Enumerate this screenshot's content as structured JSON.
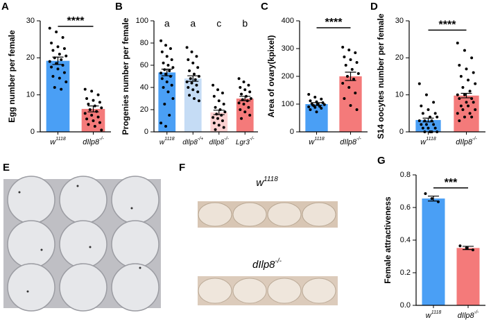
{
  "chart_data": [
    {
      "type": "bar",
      "panel": "A",
      "ylabel": "Egg number per female",
      "categories": [
        "w",
        "dIlp8"
      ],
      "category_sups": [
        "1118",
        "-/-"
      ],
      "values": [
        19.2,
        6.2
      ],
      "errors": [
        1.0,
        0.8
      ],
      "colors": [
        "#4a9ff5",
        "#f47a7a"
      ],
      "points": [
        [
          28,
          27,
          25.5,
          24,
          23,
          22.5,
          22,
          21,
          20.5,
          20,
          19.5,
          19,
          18.5,
          18,
          17.5,
          17,
          16,
          15,
          14.5,
          13.5,
          12,
          11.5
        ],
        [
          11.5,
          11,
          10,
          9,
          8.5,
          8,
          7.5,
          7,
          6.5,
          6,
          5.5,
          5,
          4.5,
          4,
          3.5,
          3,
          2.5,
          2,
          1.5,
          0.5
        ]
      ],
      "ylim": [
        0,
        30
      ],
      "yticks": [
        0,
        10,
        20,
        30
      ],
      "significance": {
        "label": "****",
        "value": 28.5
      }
    },
    {
      "type": "bar",
      "panel": "B",
      "ylabel": "Progenies number per female",
      "categories": [
        "w",
        "dIlp8",
        "dIlp8",
        "Lgr3"
      ],
      "category_sups": [
        "1118",
        "-/+",
        "-/-",
        "-/-"
      ],
      "values": [
        53.5,
        48,
        17.5,
        30
      ],
      "errors": [
        3,
        2.5,
        2,
        2
      ],
      "colors": [
        "#4a9ff5",
        "#c5dcf5",
        "#fbd0d0",
        "#f47a7a"
      ],
      "points": [
        [
          82,
          78,
          75,
          72,
          68,
          65,
          62,
          60,
          58,
          56,
          55,
          53,
          52,
          50,
          48,
          45,
          42,
          40,
          36,
          30,
          25,
          15,
          8,
          5
        ],
        [
          76,
          72,
          68,
          65,
          62,
          58,
          55,
          52,
          50,
          48,
          47,
          45,
          44,
          42,
          40,
          38,
          36,
          33,
          30,
          28
        ],
        [
          42,
          38,
          35,
          32,
          28,
          25,
          22,
          20,
          18,
          16,
          15,
          13,
          12,
          10,
          8,
          6,
          4,
          2
        ],
        [
          48,
          45,
          42,
          40,
          38,
          36,
          34,
          32,
          30,
          29,
          28,
          26,
          25,
          22,
          20,
          18,
          15,
          12
        ]
      ],
      "ylim": [
        0,
        100
      ],
      "yticks": [
        0,
        20,
        40,
        60,
        80,
        100
      ],
      "letters": [
        "a",
        "a",
        "c",
        "b"
      ]
    },
    {
      "type": "bar",
      "panel": "C",
      "ylabel": "Area of ovary(kpixel)",
      "categories": [
        "w",
        "dIlp8"
      ],
      "category_sups": [
        "1118",
        "-/-"
      ],
      "values": [
        100,
        200
      ],
      "errors": [
        5,
        15
      ],
      "colors": [
        "#4a9ff5",
        "#f47a7a"
      ],
      "points": [
        [
          135,
          125,
          118,
          112,
          108,
          105,
          102,
          100,
          98,
          95,
          92,
          90,
          88,
          85,
          80,
          72
        ],
        [
          305,
          295,
          285,
          270,
          260,
          250,
          240,
          225,
          210,
          200,
          190,
          175,
          160,
          140,
          120,
          95,
          80
        ]
      ],
      "ylim": [
        0,
        400
      ],
      "yticks": [
        0,
        100,
        200,
        300,
        400
      ],
      "significance": {
        "label": "****",
        "value": 375
      }
    },
    {
      "type": "bar",
      "panel": "D",
      "ylabel": "S14 oocytes number per female",
      "categories": [
        "w",
        "dIlp8"
      ],
      "category_sups": [
        "1118",
        "-/-"
      ],
      "values": [
        3.2,
        9.8
      ],
      "errors": [
        0.5,
        0.6
      ],
      "colors": [
        "#4a9ff5",
        "#f47a7a"
      ],
      "points": [
        [
          13,
          10,
          8,
          7,
          6,
          5,
          5,
          4,
          4,
          3,
          3,
          3,
          2,
          2,
          2,
          1,
          1,
          1,
          0,
          0,
          0,
          0
        ],
        [
          24,
          22,
          20,
          18,
          17,
          16,
          15,
          14,
          13,
          12,
          11,
          10,
          10,
          9,
          9,
          8,
          8,
          7,
          7,
          6,
          6,
          5,
          5,
          4,
          4,
          3
        ]
      ],
      "ylim": [
        0,
        30
      ],
      "yticks": [
        0,
        10,
        20,
        30
      ],
      "significance": {
        "label": "****",
        "value": 27.5
      }
    },
    {
      "type": "bar",
      "panel": "G",
      "ylabel": "Female attractiveness",
      "categories": [
        "w",
        "dIlp8"
      ],
      "category_sups": [
        "1118",
        "-/-"
      ],
      "values": [
        0.655,
        0.352
      ],
      "errors": [
        0.015,
        0.01
      ],
      "colors": [
        "#4a9ff5",
        "#f47a7a"
      ],
      "points": [
        [
          0.685,
          0.655,
          0.635
        ],
        [
          0.365,
          0.352,
          0.34
        ]
      ],
      "ylim": [
        0,
        0.8
      ],
      "yticks": [
        {
          "value": 0,
          "label": "0.0"
        },
        0.2,
        0.4,
        0.6,
        0.8
      ],
      "significance": {
        "label": "***",
        "value": 0.72
      }
    }
  ],
  "images": [
    {
      "panel": "E"
    },
    {
      "panel": "F",
      "labels": [
        {
          "base": "w",
          "sup": "1118"
        },
        {
          "base": "dIlp8",
          "sup": "-/-"
        }
      ]
    }
  ]
}
